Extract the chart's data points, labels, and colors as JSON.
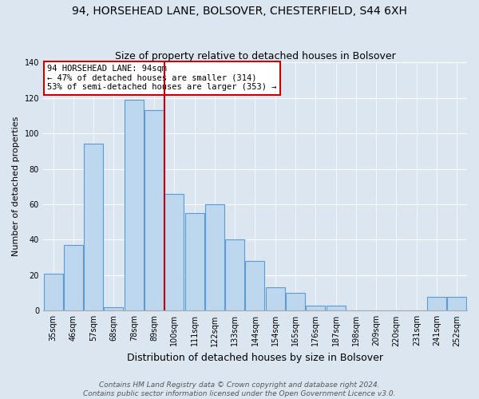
{
  "title": "94, HORSEHEAD LANE, BOLSOVER, CHESTERFIELD, S44 6XH",
  "subtitle": "Size of property relative to detached houses in Bolsover",
  "xlabel": "Distribution of detached houses by size in Bolsover",
  "ylabel": "Number of detached properties",
  "bins": [
    "35sqm",
    "46sqm",
    "57sqm",
    "68sqm",
    "78sqm",
    "89sqm",
    "100sqm",
    "111sqm",
    "122sqm",
    "133sqm",
    "144sqm",
    "154sqm",
    "165sqm",
    "176sqm",
    "187sqm",
    "198sqm",
    "209sqm",
    "220sqm",
    "231sqm",
    "241sqm",
    "252sqm"
  ],
  "values": [
    21,
    37,
    94,
    2,
    119,
    113,
    66,
    55,
    60,
    40,
    28,
    13,
    10,
    3,
    3,
    0,
    0,
    0,
    0,
    8,
    8
  ],
  "bar_color": "#bdd7ee",
  "bar_edge_color": "#5b9bd5",
  "property_line_x": 5.5,
  "annotation_line1": "94 HORSEHEAD LANE: 94sqm",
  "annotation_line2": "← 47% of detached houses are smaller (314)",
  "annotation_line3": "53% of semi-detached houses are larger (353) →",
  "annotation_box_color": "#ffffff",
  "annotation_box_edge_color": "#cc0000",
  "property_line_color": "#cc0000",
  "ylim": [
    0,
    140
  ],
  "yticks": [
    0,
    20,
    40,
    60,
    80,
    100,
    120,
    140
  ],
  "footer_line1": "Contains HM Land Registry data © Crown copyright and database right 2024.",
  "footer_line2": "Contains public sector information licensed under the Open Government Licence v3.0.",
  "background_color": "#dce6f1",
  "plot_background_color": "#dce6f1",
  "title_fontsize": 10,
  "subtitle_fontsize": 9,
  "xlabel_fontsize": 9,
  "ylabel_fontsize": 8,
  "annotation_fontsize": 7.5,
  "footer_fontsize": 6.5,
  "tick_fontsize": 7
}
